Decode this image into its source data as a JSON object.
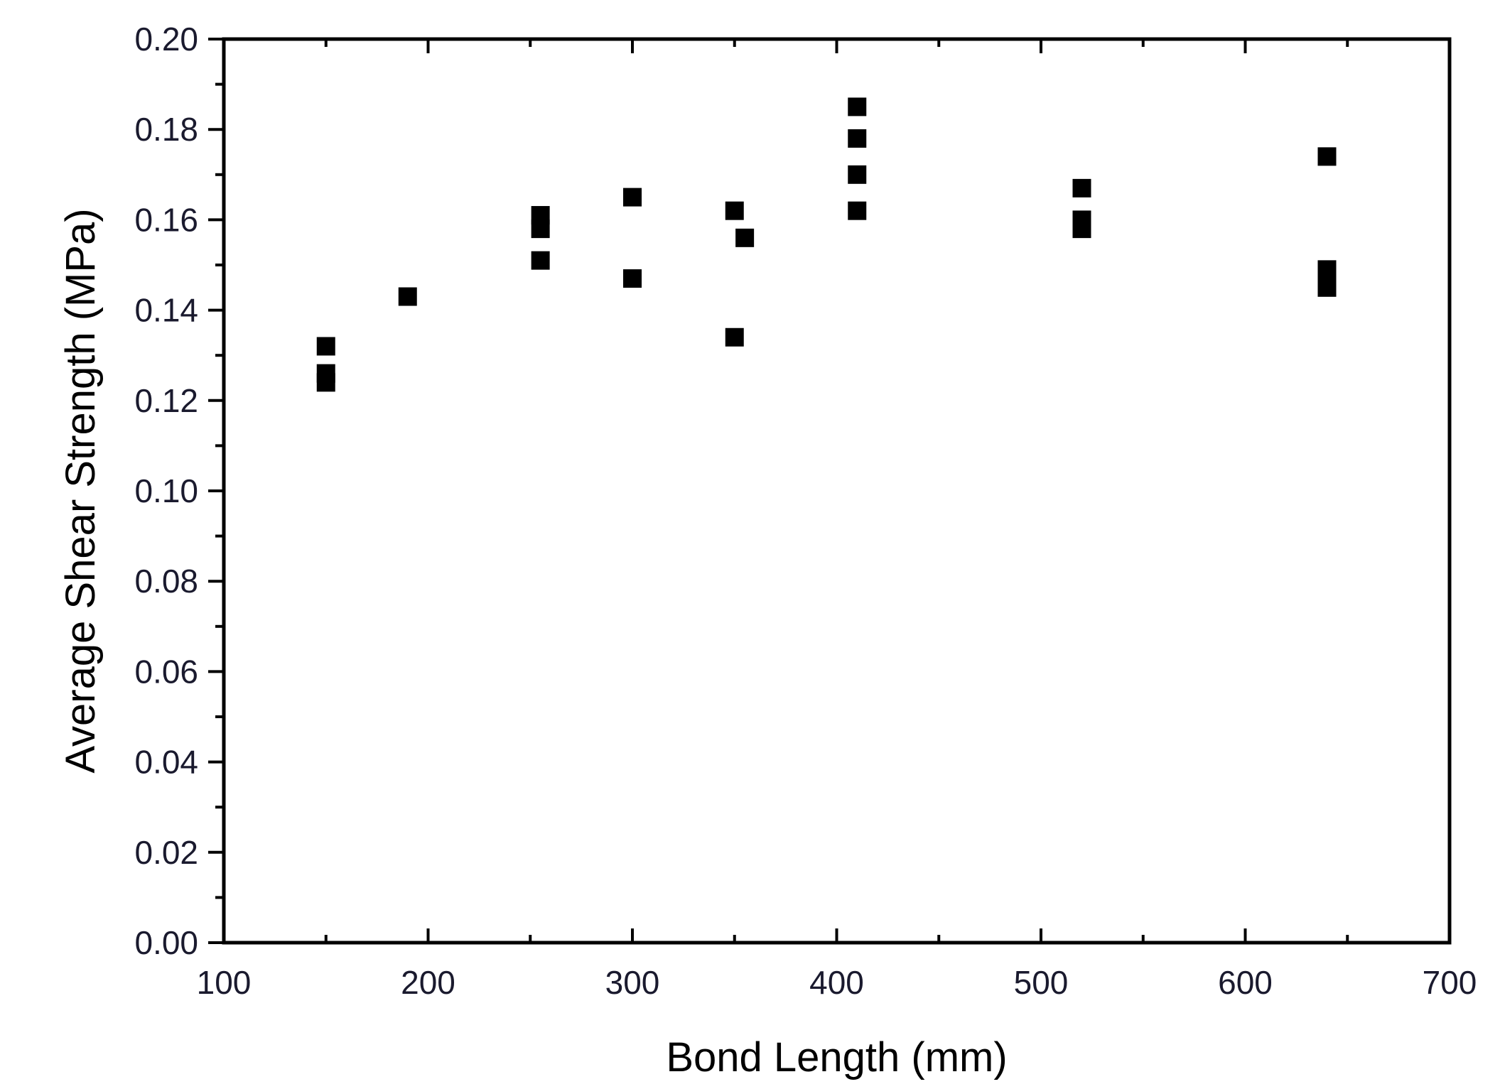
{
  "chart_data": {
    "type": "scatter",
    "title": "",
    "xlabel": "Bond Length (mm)",
    "ylabel": "Average Shear Strength (MPa)",
    "xlim": [
      100,
      700
    ],
    "ylim": [
      0,
      0.2
    ],
    "x_major_ticks": [
      100,
      200,
      300,
      400,
      500,
      600,
      700
    ],
    "x_tick_labels": [
      "100",
      "200",
      "300",
      "400",
      "500",
      "600",
      "700"
    ],
    "y_major_ticks": [
      0,
      0.02,
      0.04,
      0.06,
      0.08,
      0.1,
      0.12,
      0.14,
      0.16,
      0.18,
      0.2
    ],
    "y_tick_labels": [
      "0.00",
      "0.02",
      "0.04",
      "0.06",
      "0.08",
      "0.10",
      "0.12",
      "0.14",
      "0.16",
      "0.18",
      "0.20"
    ],
    "grid": false,
    "legend": "none",
    "marker": "square",
    "marker_color": "#000000",
    "points": [
      {
        "x": 150,
        "y": 0.132
      },
      {
        "x": 150,
        "y": 0.126
      },
      {
        "x": 150,
        "y": 0.124
      },
      {
        "x": 190,
        "y": 0.143
      },
      {
        "x": 255,
        "y": 0.161
      },
      {
        "x": 255,
        "y": 0.158
      },
      {
        "x": 255,
        "y": 0.151
      },
      {
        "x": 300,
        "y": 0.165
      },
      {
        "x": 300,
        "y": 0.147
      },
      {
        "x": 350,
        "y": 0.162
      },
      {
        "x": 355,
        "y": 0.156
      },
      {
        "x": 350,
        "y": 0.134
      },
      {
        "x": 410,
        "y": 0.185
      },
      {
        "x": 410,
        "y": 0.178
      },
      {
        "x": 410,
        "y": 0.17
      },
      {
        "x": 410,
        "y": 0.162
      },
      {
        "x": 520,
        "y": 0.167
      },
      {
        "x": 520,
        "y": 0.16
      },
      {
        "x": 520,
        "y": 0.158
      },
      {
        "x": 640,
        "y": 0.174
      },
      {
        "x": 640,
        "y": 0.149
      },
      {
        "x": 640,
        "y": 0.147
      },
      {
        "x": 640,
        "y": 0.145
      }
    ]
  }
}
